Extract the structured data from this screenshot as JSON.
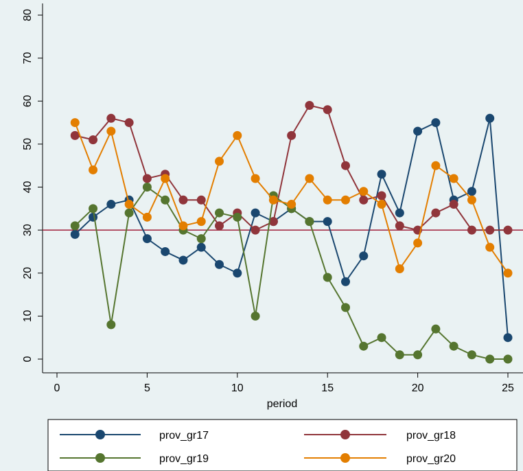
{
  "chart_data": {
    "type": "line",
    "xlabel": "period",
    "ylabel": "",
    "xlim": [
      0,
      25
    ],
    "ylim": [
      0,
      80
    ],
    "xticks": [
      "0",
      "5",
      "10",
      "15",
      "20",
      "25"
    ],
    "yticks": [
      "0",
      "10",
      "20",
      "30",
      "40",
      "50",
      "60",
      "70",
      "80"
    ],
    "grid": false,
    "legend_position": "bottom",
    "reference_line": {
      "y": 30,
      "color": "#a0203a"
    },
    "x": [
      1,
      2,
      3,
      4,
      5,
      6,
      7,
      8,
      9,
      10,
      11,
      12,
      13,
      14,
      15,
      16,
      17,
      18,
      19,
      20,
      21,
      22,
      23,
      24,
      25
    ],
    "series": [
      {
        "name": "prov_gr17",
        "color": "#1a476f",
        "values": [
          29,
          33,
          36,
          37,
          28,
          25,
          23,
          26,
          22,
          20,
          34,
          32,
          35,
          32,
          32,
          18,
          24,
          43,
          34,
          53,
          55,
          37,
          39,
          56,
          5
        ]
      },
      {
        "name": "prov_gr18",
        "color": "#90353b",
        "values": [
          52,
          51,
          56,
          55,
          42,
          43,
          37,
          37,
          31,
          34,
          30,
          32,
          52,
          59,
          58,
          45,
          37,
          38,
          31,
          30,
          34,
          36,
          30,
          30,
          30
        ]
      },
      {
        "name": "prov_gr19",
        "color": "#55752f",
        "values": [
          31,
          35,
          8,
          34,
          40,
          37,
          30,
          28,
          34,
          33,
          10,
          38,
          35,
          32,
          19,
          12,
          3,
          5,
          1,
          1,
          7,
          3,
          1,
          0,
          0
        ]
      },
      {
        "name": "prov_gr20",
        "color": "#e37e00",
        "values": [
          55,
          44,
          53,
          36,
          33,
          42,
          31,
          32,
          46,
          52,
          42,
          37,
          36,
          42,
          37,
          37,
          39,
          36,
          21,
          27,
          45,
          42,
          37,
          26,
          20
        ]
      }
    ]
  }
}
